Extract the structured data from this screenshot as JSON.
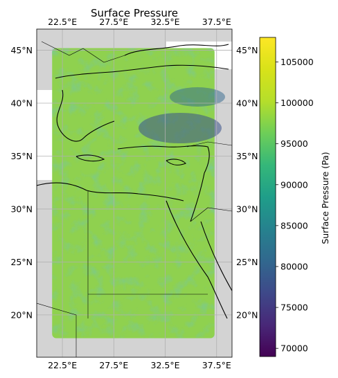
{
  "chart_data": {
    "type": "heatmap",
    "title": "Surface Pressure",
    "projection": "PlateCarree",
    "x_ticks": [
      "22.5°E",
      "27.5°E",
      "32.5°E",
      "37.5°E"
    ],
    "y_ticks": [
      "45°N",
      "40°N",
      "35°N",
      "30°N",
      "25°N",
      "20°N"
    ],
    "lon_range": [
      20.0,
      39.0
    ],
    "lat_range": [
      16.0,
      47.0
    ],
    "data_extent": {
      "lon": [
        21.5,
        37.3
      ],
      "lat": [
        17.8,
        45.2
      ]
    },
    "grid": true,
    "colorbar": {
      "label": "Surface Pressure (Pa)",
      "colormap": "viridis",
      "vmin": 69000,
      "vmax": 108000,
      "ticks": [
        "70000",
        "75000",
        "80000",
        "85000",
        "90000",
        "95000",
        "100000",
        "105000"
      ]
    },
    "colors": {
      "land_background": "#d3d3d3",
      "ocean_value_color": "#8fd14f",
      "gridline": "#b0b0b0",
      "coastline": "#000000"
    }
  }
}
